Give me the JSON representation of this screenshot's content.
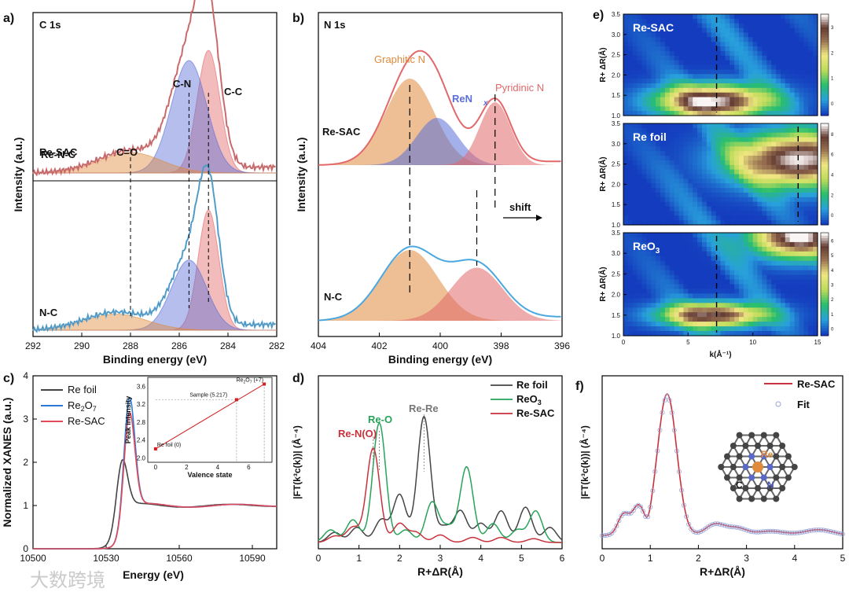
{
  "watermark": "大数跨境",
  "colors": {
    "orange": "#e08a3c",
    "blue": "#5a6fd8",
    "red": "#e2686a",
    "darkred": "#c8323c",
    "lightblue": "#4aa8e0",
    "green": "#27a35a",
    "gray": "#555555"
  },
  "chart_data": [
    {
      "panel": "a)",
      "type": "line",
      "title": "C 1s",
      "xlabel": "Binding energy (eV)",
      "ylabel": "Intensity (a.u.)",
      "xlim": [
        292,
        282
      ],
      "xticks": [
        "292",
        "290",
        "288",
        "286",
        "284",
        "282"
      ],
      "annotations": [
        "Re-N-C",
        "C=O",
        "C-N",
        "C-C"
      ],
      "sample_labels": [
        "Re-SAC",
        "N-C"
      ],
      "series": [
        {
          "name": "Re-SAC C-C fit",
          "center": 284.8,
          "fwhm": 1.1,
          "height": 0.6,
          "color": "#e2686a"
        },
        {
          "name": "Re-SAC C-N fit",
          "center": 285.6,
          "fwhm": 1.7,
          "height": 0.55,
          "color": "#5a6fd8"
        },
        {
          "name": "Re-SAC C=O fit",
          "center": 288.0,
          "fwhm": 3.0,
          "height": 0.1,
          "color": "#e08a3c"
        },
        {
          "name": "N-C C-C fit",
          "center": 284.8,
          "fwhm": 1.0,
          "height": 0.6,
          "color": "#e2686a"
        },
        {
          "name": "N-C C-N fit",
          "center": 285.6,
          "fwhm": 1.7,
          "height": 0.35,
          "color": "#5a6fd8"
        },
        {
          "name": "N-C C=O fit",
          "center": 288.6,
          "fwhm": 3.0,
          "height": 0.08,
          "color": "#e08a3c"
        }
      ],
      "dashed_lines_ev": [
        288.0,
        285.6,
        284.8
      ]
    },
    {
      "panel": "b)",
      "type": "line",
      "title": "N 1s",
      "xlabel": "Binding energy (eV)",
      "ylabel": "Intensity (a.u.)",
      "xlim": [
        404,
        396
      ],
      "xticks": [
        "404",
        "402",
        "400",
        "398",
        "396"
      ],
      "annotations": [
        "Graphitic N",
        "ReN",
        "x",
        "Pyridinic N",
        "shift"
      ],
      "sample_labels": [
        "Re-SAC",
        "N-C"
      ],
      "series": [
        {
          "name": "Re-SAC Graphitic N",
          "center": 401.0,
          "fwhm": 1.9,
          "height": 0.55,
          "color": "#e08a3c"
        },
        {
          "name": "Re-SAC ReNx",
          "center": 400.1,
          "fwhm": 1.6,
          "height": 0.3,
          "color": "#5a6fd8"
        },
        {
          "name": "Re-SAC Pyridinic N",
          "center": 398.2,
          "fwhm": 1.2,
          "height": 0.4,
          "color": "#e2686a"
        },
        {
          "name": "N-C Graphitic N",
          "center": 401.0,
          "fwhm": 2.2,
          "height": 0.6,
          "color": "#e08a3c"
        },
        {
          "name": "N-C Pyridinic N",
          "center": 398.8,
          "fwhm": 2.0,
          "height": 0.45,
          "color": "#e2686a"
        }
      ],
      "dashed_lines_ev": [
        401.0,
        398.2,
        398.8
      ]
    },
    {
      "panel": "c)",
      "type": "line",
      "xlabel": "Energy (eV)",
      "ylabel": "Normalized XANES (a.u.)",
      "xlim": [
        10500,
        10600
      ],
      "ylim": [
        0,
        4
      ],
      "xticks": [
        "10500",
        "10530",
        "10560",
        "10590"
      ],
      "yticks": [
        "0",
        "1",
        "2",
        "3",
        "4"
      ],
      "legend": [
        "Re foil",
        "Re",
        "2",
        "O",
        "7",
        "Re-SAC"
      ],
      "series": [
        {
          "name": "Re foil",
          "edge": 10534,
          "peak": 2.2,
          "color": "#444444"
        },
        {
          "name": "Re2O7",
          "edge": 10537,
          "peak": 3.65,
          "color": "#2b7bd6"
        },
        {
          "name": "Re-SAC",
          "edge": 10537,
          "peak": 3.3,
          "color": "#e04a5a"
        }
      ],
      "inset": {
        "xlabel": "Valence state",
        "ylabel": "Peak intensity",
        "xticks": [
          "0",
          "2",
          "4",
          "6"
        ],
        "yticks": [
          "2.0",
          "2.4",
          "2.8",
          "3.2",
          "3.6"
        ],
        "points": [
          {
            "label": "Re foil (0)",
            "x": 0,
            "y": 2.2
          },
          {
            "label": "Sample (5.217)",
            "x": 5.217,
            "y": 3.3
          },
          {
            "label": "Re",
            "x": 7,
            "y": 3.65
          }
        ],
        "re2o7_sub": "2",
        "re2o7_o": "O",
        "re2o7_sub2": "7",
        "re2o7_val": "(+7)"
      }
    },
    {
      "panel": "d)",
      "type": "line",
      "xlabel": "R+ΔR(Å)",
      "ylabel": "|FT(k³c(k))| (Å⁻⁴)",
      "xlim": [
        0,
        6
      ],
      "xticks": [
        "0",
        "1",
        "2",
        "3",
        "4",
        "5",
        "6"
      ],
      "legend": [
        "Re foil",
        "ReO",
        "3",
        "Re-SAC"
      ],
      "annotations": [
        "Re-N(O)",
        "Re-O",
        "Re-Re"
      ],
      "series": [
        {
          "name": "Re foil",
          "color": "#444444",
          "peaks": [
            [
              0.4,
              0.08
            ],
            [
              0.95,
              0.12
            ],
            [
              1.55,
              0.18
            ],
            [
              2.0,
              0.38
            ],
            [
              2.6,
              1.0
            ],
            [
              3.1,
              0.12
            ],
            [
              3.5,
              0.25
            ],
            [
              4.0,
              0.15
            ],
            [
              4.5,
              0.25
            ],
            [
              5.1,
              0.28
            ],
            [
              5.7,
              0.12
            ]
          ]
        },
        {
          "name": "ReO3",
          "color": "#27a35a",
          "peaks": [
            [
              0.3,
              0.1
            ],
            [
              0.85,
              0.18
            ],
            [
              1.5,
              0.95
            ],
            [
              2.15,
              0.1
            ],
            [
              2.8,
              0.32
            ],
            [
              3.2,
              0.12
            ],
            [
              3.65,
              0.6
            ],
            [
              4.3,
              0.15
            ],
            [
              4.9,
              0.1
            ],
            [
              5.35,
              0.25
            ]
          ]
        },
        {
          "name": "Re-SAC",
          "color": "#c8323c",
          "peaks": [
            [
              0.4,
              0.05
            ],
            [
              0.85,
              0.12
            ],
            [
              1.35,
              0.75
            ],
            [
              2.0,
              0.15
            ],
            [
              2.4,
              0.08
            ],
            [
              3.0,
              0.06
            ],
            [
              3.8,
              0.04
            ],
            [
              4.5,
              0.04
            ],
            [
              5.3,
              0.03
            ]
          ]
        }
      ]
    },
    {
      "panel": "e)",
      "type": "heatmap",
      "xlabel": "k(Å⁻¹)",
      "ylabel": "R+ ΔR(Å)",
      "xlim": [
        0,
        15
      ],
      "ylim": [
        1.0,
        3.5
      ],
      "xticks": [
        "0",
        "5",
        "10",
        "15"
      ],
      "yticks": [
        "1.0",
        "1.5",
        "2.0",
        "2.5",
        "3.0",
        "3.5"
      ],
      "maps": [
        {
          "name": "Re-SAC",
          "hotspots": [
            {
              "k": 7.0,
              "r": 1.35,
              "amp": 1.0,
              "sk": 3.0,
              "sr": 0.28
            }
          ],
          "dashed_k": 7.2,
          "cbar": [
            "0",
            "1",
            "2",
            "3"
          ]
        },
        {
          "name": "Re foil",
          "hotspots": [
            {
              "k": 13.5,
              "r": 2.6,
              "amp": 1.0,
              "sk": 3.5,
              "sr": 0.45
            }
          ],
          "dashed_k": 13.5,
          "cbar": [
            "0",
            "2",
            "4",
            "6",
            "8"
          ]
        },
        {
          "name": "ReO",
          "hotspots": [
            {
              "k": 7.0,
              "r": 1.5,
              "amp": 0.9,
              "sk": 2.8,
              "sr": 0.2
            },
            {
              "k": 13.5,
              "r": 3.4,
              "amp": 1.0,
              "sk": 2.5,
              "sr": 0.35
            }
          ],
          "dashed_k": 7.2,
          "cbar": [
            "0",
            "1",
            "2",
            "3",
            "4",
            "5",
            "6"
          ],
          "sub": "3"
        }
      ]
    },
    {
      "panel": "f)",
      "type": "line",
      "xlabel": "R+ΔR(Å)",
      "ylabel": "|FT(k³c(k))| (Å⁻⁴)",
      "xlim": [
        0,
        5
      ],
      "xticks": [
        "0",
        "1",
        "2",
        "3",
        "4",
        "5"
      ],
      "legend": [
        "Re-SAC",
        "Fit"
      ],
      "structure_labels": [
        "Re",
        "C",
        "N"
      ],
      "series": [
        {
          "name": "Re-SAC",
          "color": "#c8323c"
        },
        {
          "name": "Fit",
          "color": "#9aa6d8"
        }
      ]
    }
  ]
}
